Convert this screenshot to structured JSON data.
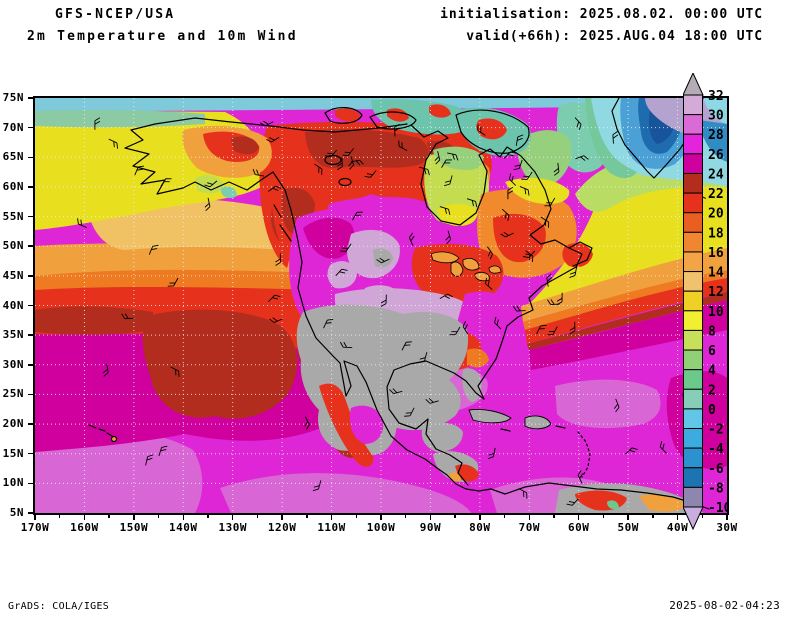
{
  "header": {
    "model": "GFS-NCEP/USA",
    "product": "2m Temperature and 10m Wind",
    "init": "initialisation: 2025.08.02. 00:00 UTC",
    "valid": "valid(+66h): 2025.AUG.04 18:00 UTC"
  },
  "footer": {
    "credit": "GrADS: COLA/IGES",
    "generated": "2025-08-02-04:23"
  },
  "axes": {
    "lat_labels": [
      "75N",
      "70N",
      "65N",
      "60N",
      "55N",
      "50N",
      "45N",
      "40N",
      "35N",
      "30N",
      "25N",
      "20N",
      "15N",
      "10N",
      "5N"
    ],
    "lon_labels": [
      "170W",
      "160W",
      "150W",
      "140W",
      "130W",
      "120W",
      "110W",
      "100W",
      "90W",
      "80W",
      "70W",
      "60W",
      "50W",
      "40W",
      "30W"
    ]
  },
  "colorbar": {
    "levels": [
      32,
      30,
      28,
      26,
      24,
      22,
      20,
      18,
      16,
      14,
      12,
      10,
      8,
      6,
      4,
      2,
      0,
      -2,
      -4,
      -6,
      -8,
      -10
    ],
    "colors": [
      "#d4aad8",
      "#da6ad6",
      "#e424dc",
      "#cf009e",
      "#b22d1e",
      "#e6321c",
      "#ea5e22",
      "#f08630",
      "#f2a446",
      "#f0c26e",
      "#eed026",
      "#f2ee30",
      "#c6e05a",
      "#92d077",
      "#6cc98c",
      "#86ceb8",
      "#62c6e6",
      "#3cacdf",
      "#2b92cf",
      "#1c74b0",
      "#8e86ae"
    ],
    "above_color": "#b3abb6",
    "below_color": "#c7aede"
  },
  "chart_data": {
    "type": "heatmap",
    "title": "2m Temperature and 10m Wind",
    "model": "GFS-NCEP/USA",
    "initialisation": "2025.08.02. 00:00 UTC",
    "valid_time": "2025.AUG.04 18:00 UTC (+66h)",
    "x_ticks": [
      "170W",
      "160W",
      "150W",
      "140W",
      "130W",
      "120W",
      "110W",
      "100W",
      "90W",
      "80W",
      "70W",
      "60W",
      "50W",
      "40W",
      "30W"
    ],
    "y_ticks": [
      "75N",
      "70N",
      "65N",
      "60N",
      "55N",
      "50N",
      "45N",
      "40N",
      "35N",
      "30N",
      "25N",
      "20N",
      "15N",
      "10N",
      "5N"
    ],
    "extent": {
      "lon": [
        "170W",
        "30W"
      ],
      "lat": [
        "5N",
        "75N"
      ]
    },
    "contour_levels": [
      32,
      30,
      28,
      26,
      24,
      22,
      20,
      18,
      16,
      14,
      12,
      10,
      8,
      6,
      4,
      2,
      0,
      -2,
      -4,
      -6,
      -8,
      -10
    ],
    "palette_top_to_bottom": [
      "#d4aad8",
      "#da6ad6",
      "#e424dc",
      "#cf009e",
      "#b22d1e",
      "#e6321c",
      "#ea5e22",
      "#f08630",
      "#f2a446",
      "#f0c26e",
      "#eed026",
      "#f2ee30",
      "#c6e05a",
      "#92d077",
      "#6cc98c",
      "#86ceb8",
      "#62c6e6",
      "#3cacdf",
      "#2b92cf",
      "#1c74b0",
      "#8e86ae"
    ],
    "above_range_color": "#b3abb6",
    "below_range_color": "#c7aede",
    "grid": true,
    "legend_position": "right-overlay",
    "visible_features": [
      "grey above-32 region over the Great Plains, Texas, interior Mexico, Florida, Cuba and Yucatan",
      "lavender 30-32 ring around the grey core over the Midwest and Mexico",
      "bright magenta 26-28 over subtropical oceans, Gulf of Mexico and Caribbean",
      "magenta/lavender 26-32 hot patch over central Canada",
      "red and dark-red 20-24 across interior Alaska, Yukon and northern Canada",
      "dark-red 22-24 pool in the central North Pacific, deep magenta 24-26 around it",
      "yellow 10-14 over the Bering Sea and the North Atlantic near 50N",
      "sandy/orange 12-18 over the Gulf of Alaska",
      "green and cyan 0-8 along the Arctic coast and Canadian archipelago, Hudson Bay 6-10",
      "blues -10 to 0 over the Greenland ice sheet, lavender-grey below -10 on its northern dome",
      "wind barbs (10m wind) scattered over the whole domain"
    ]
  }
}
